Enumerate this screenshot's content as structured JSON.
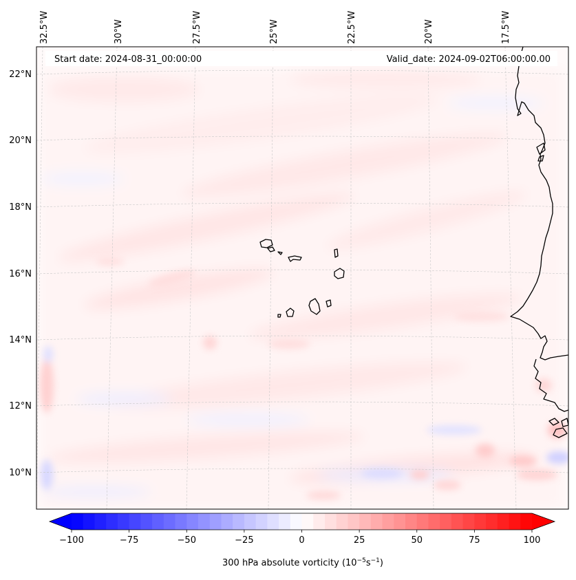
{
  "header": {
    "start_date": "Start date: 2024-08-31_00:00:00",
    "valid_date": "Valid_date: 2024-09-02T06:00:00.00"
  },
  "lon_labels": [
    "32.5°W",
    "30°W",
    "27.5°W",
    "25°W",
    "22.5°W",
    "20°W",
    "17.5°W"
  ],
  "lat_labels": [
    "22°N",
    "20°N",
    "18°N",
    "16°N",
    "14°N",
    "12°N",
    "10°N"
  ],
  "colorbar": {
    "min": -100,
    "max": 100,
    "step": 5,
    "tick_values": [
      -100,
      -75,
      -50,
      -25,
      0,
      25,
      50,
      75,
      100
    ],
    "tick_labels": [
      "−100",
      "−75",
      "−50",
      "−25",
      "0",
      "25",
      "50",
      "75",
      "100"
    ],
    "label": "300 hPa absolute vorticity (10",
    "label_exp1": "−5",
    "label_mid": "s",
    "label_exp2": "−1",
    "label_end": ")",
    "colors": {
      "negative": "#0000ff",
      "neutral": "#ffffff",
      "positive": "#ff0000"
    }
  }
}
